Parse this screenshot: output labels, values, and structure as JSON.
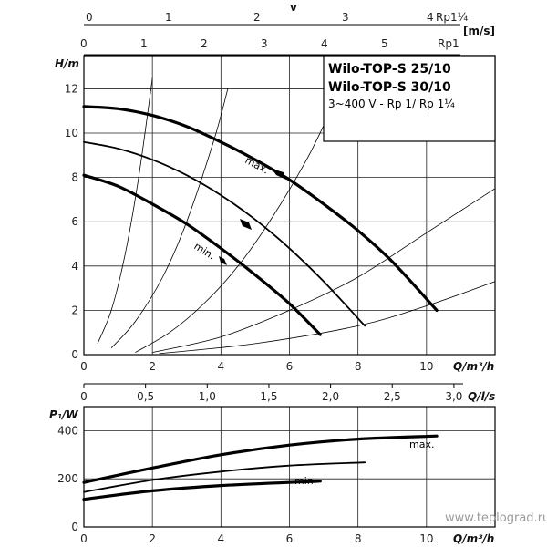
{
  "info_box": {
    "title_line1": "Wilo-TOP-S 25/10",
    "title_line2": "Wilo-TOP-S 30/10",
    "subtitle": "3~400 V - Rp 1/ Rp 1¼"
  },
  "top_axes": {
    "v_label": "v",
    "rp114_ticks": [
      "0",
      "1",
      "2",
      "3",
      "4"
    ],
    "rp114_label": "Rp1¼",
    "rp1_ticks": [
      "0",
      "1",
      "2",
      "3",
      "4",
      "5"
    ],
    "rp1_label": "Rp1",
    "unit": "[m/s]"
  },
  "watermark": "www.teplograd.ru",
  "chart_data": [
    {
      "type": "line",
      "ylabel": "H/m",
      "xlabel": "Q/m³/h",
      "xlim": [
        0,
        12
      ],
      "ylim": [
        0,
        13.5
      ],
      "x_ticks": [
        "0",
        "2",
        "4",
        "6",
        "8",
        "10"
      ],
      "y_ticks": [
        "0",
        "2",
        "4",
        "6",
        "8",
        "10",
        "12"
      ],
      "series": [
        {
          "name": "max.",
          "x": [
            0,
            1,
            2,
            3,
            4,
            5,
            6,
            7,
            8,
            9,
            10.3
          ],
          "y": [
            11.2,
            11.1,
            10.8,
            10.3,
            9.6,
            8.8,
            7.9,
            6.8,
            5.6,
            4.2,
            2.0
          ]
        },
        {
          "name": "",
          "x": [
            0,
            1,
            2,
            3,
            4,
            5,
            6,
            7,
            8.2
          ],
          "y": [
            9.6,
            9.3,
            8.8,
            8.1,
            7.2,
            6.1,
            4.8,
            3.3,
            1.3
          ]
        },
        {
          "name": "min.",
          "x": [
            0,
            1,
            2,
            3,
            4,
            5,
            6,
            6.9
          ],
          "y": [
            8.1,
            7.6,
            6.8,
            5.9,
            4.8,
            3.6,
            2.3,
            0.9
          ]
        }
      ],
      "system_curves": [
        {
          "x": [
            0.4,
            0.8,
            1.2,
            1.6,
            2.0,
            2.2
          ],
          "y": [
            0.5,
            2,
            4.5,
            8,
            12.5,
            14.5
          ]
        },
        {
          "x": [
            0.8,
            1.5,
            2.3,
            3.0,
            3.8,
            4.2
          ],
          "y": [
            0.3,
            1.5,
            3.5,
            6,
            9.7,
            12
          ]
        },
        {
          "x": [
            1.5,
            2.5,
            3.5,
            4.5,
            5.5,
            6.5,
            7.2
          ],
          "y": [
            0.1,
            1,
            2.3,
            4,
            6.2,
            8.8,
            11
          ]
        },
        {
          "x": [
            2.0,
            4.0,
            6.0,
            8.0,
            10.0,
            12.0
          ],
          "y": [
            0.1,
            0.8,
            2.0,
            3.5,
            5.5,
            7.5
          ]
        },
        {
          "x": [
            2.2,
            5.0,
            8.0,
            10.0,
            12.0
          ],
          "y": [
            0.05,
            0.5,
            1.3,
            2.2,
            3.3
          ]
        }
      ],
      "secondary_x_axis": {
        "label": "Q/l/s",
        "ticks": [
          "0",
          "0,5",
          "1,0",
          "1,5",
          "2,0",
          "2,5",
          "3,0"
        ]
      }
    },
    {
      "type": "line",
      "ylabel": "P₁/W",
      "xlabel": "Q/m³/h",
      "xlim": [
        0,
        12
      ],
      "ylim": [
        0,
        500
      ],
      "x_ticks": [
        "0",
        "2",
        "4",
        "6",
        "8",
        "10"
      ],
      "y_ticks": [
        "0",
        "200",
        "400"
      ],
      "series": [
        {
          "name": "max.",
          "x": [
            0,
            2,
            4,
            6,
            8,
            10.3
          ],
          "y": [
            185,
            245,
            300,
            340,
            365,
            378
          ]
        },
        {
          "name": "min.",
          "x": [
            0,
            2,
            4,
            6,
            8.2
          ],
          "y": [
            145,
            195,
            230,
            255,
            268
          ]
        },
        {
          "name": "",
          "x": [
            0,
            2,
            4,
            6.9
          ],
          "y": [
            115,
            150,
            172,
            190
          ]
        }
      ]
    }
  ]
}
